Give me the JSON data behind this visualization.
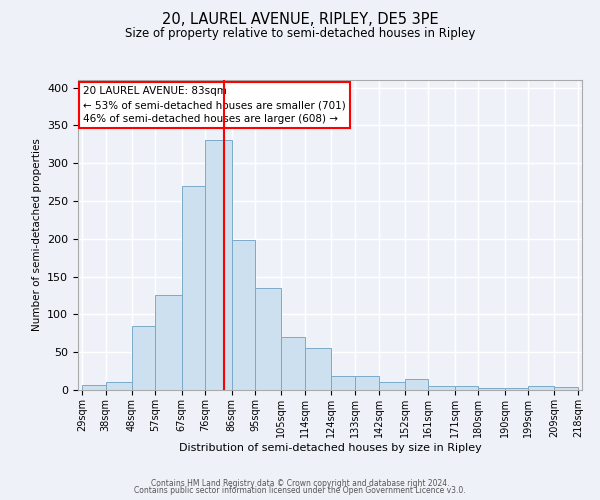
{
  "title": "20, LAUREL AVENUE, RIPLEY, DE5 3PE",
  "subtitle": "Size of property relative to semi-detached houses in Ripley",
  "xlabel": "Distribution of semi-detached houses by size in Ripley",
  "ylabel": "Number of semi-detached properties",
  "bin_edges": [
    29,
    38,
    48,
    57,
    67,
    76,
    86,
    95,
    105,
    114,
    124,
    133,
    142,
    152,
    161,
    171,
    180,
    190,
    199,
    209,
    218
  ],
  "bin_labels": [
    "29sqm",
    "38sqm",
    "48sqm",
    "57sqm",
    "67sqm",
    "76sqm",
    "86sqm",
    "95sqm",
    "105sqm",
    "114sqm",
    "124sqm",
    "133sqm",
    "142sqm",
    "152sqm",
    "161sqm",
    "171sqm",
    "180sqm",
    "190sqm",
    "199sqm",
    "209sqm",
    "218sqm"
  ],
  "bar_heights": [
    7,
    10,
    85,
    125,
    270,
    330,
    198,
    135,
    70,
    55,
    18,
    18,
    10,
    15,
    5,
    5,
    3,
    3,
    5,
    4
  ],
  "bar_color": "#cde0ef",
  "bar_edge_color": "#7aaac8",
  "property_line_x": 83,
  "property_line_color": "red",
  "annotation_title": "20 LAUREL AVENUE: 83sqm",
  "annotation_line1": "← 53% of semi-detached houses are smaller (701)",
  "annotation_line2": "46% of semi-detached houses are larger (608) →",
  "annotation_box_color": "white",
  "annotation_box_edge_color": "red",
  "ylim": [
    0,
    410
  ],
  "yticks": [
    0,
    50,
    100,
    150,
    200,
    250,
    300,
    350,
    400
  ],
  "background_color": "#eef2f8",
  "grid_color": "white",
  "footer_line1": "Contains HM Land Registry data © Crown copyright and database right 2024.",
  "footer_line2": "Contains public sector information licensed under the Open Government Licence v3.0."
}
